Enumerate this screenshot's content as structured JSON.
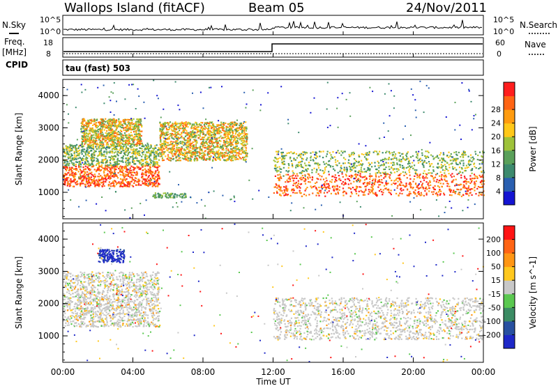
{
  "header": {
    "station": "Wallops Island (fitACF)",
    "beam": "Beam 05",
    "date": "24/Nov/2011"
  },
  "noise_panel": {
    "left_label": "N.Sky",
    "right_label": "N.Search",
    "left_ticks": [
      "10^5",
      "10^0"
    ],
    "right_ticks": [
      "10^5",
      "10^0"
    ]
  },
  "freq_panel": {
    "left_label_1": "Freq.",
    "left_label_2": "[MHz]",
    "cpid_label": "CPID",
    "right_label": "Nave",
    "left_ticks": [
      "18",
      "8"
    ],
    "right_ticks": [
      "60",
      "0"
    ],
    "cpid_value": "tau (fast) 503"
  },
  "chart_data": [
    {
      "type": "heatmap",
      "title": "",
      "xlabel": "Time UT",
      "ylabel": "Slant Range [km]",
      "xlim": [
        0,
        24
      ],
      "ylim": [
        180,
        4500
      ],
      "x_ticks": [
        "00:00",
        "04:00",
        "08:00",
        "12:00",
        "16:00",
        "20:00",
        "00:00"
      ],
      "y_ticks": [
        "1000",
        "2000",
        "3000",
        "4000"
      ],
      "colorbar": {
        "label": "Power [dB]",
        "ticks": [
          "4",
          "8",
          "12",
          "16",
          "20",
          "24",
          "28"
        ],
        "colors": [
          "#1414d2",
          "#2a5fb0",
          "#3d8a6e",
          "#5aa05a",
          "#9ec23a",
          "#ffc819",
          "#ff9b0f",
          "#ff6414",
          "#ff1e1e"
        ]
      },
      "echo_regions": [
        {
          "t_start": 0.0,
          "t_end": 5.5,
          "range_start": 1200,
          "range_end": 2500,
          "level": "high"
        },
        {
          "t_start": 1.0,
          "t_end": 4.5,
          "range_start": 2500,
          "range_end": 3300,
          "level": "medium"
        },
        {
          "t_start": 5.5,
          "t_end": 10.5,
          "range_start": 2000,
          "range_end": 3200,
          "level": "medium"
        },
        {
          "t_start": 12.0,
          "t_end": 24.0,
          "range_start": 900,
          "range_end": 2300,
          "level": "high"
        },
        {
          "t_start": 5.0,
          "t_end": 7.0,
          "range_start": 850,
          "range_end": 1000,
          "level": "low"
        }
      ]
    },
    {
      "type": "heatmap",
      "title": "",
      "xlabel": "Time UT",
      "ylabel": "Slant Range [km]",
      "xlim": [
        0,
        24
      ],
      "ylim": [
        180,
        4500
      ],
      "x_ticks": [
        "00:00",
        "04:00",
        "08:00",
        "12:00",
        "16:00",
        "20:00",
        "00:00"
      ],
      "y_ticks": [
        "1000",
        "2000",
        "3000",
        "4000"
      ],
      "colorbar": {
        "label": "Velocity [m s^-1]",
        "ticks": [
          "200",
          "100",
          "50",
          "15",
          "-15",
          "-50",
          "-100",
          "-200"
        ],
        "colors": [
          "#1e28c8",
          "#2850a0",
          "#3c8c64",
          "#5ac850",
          "#c8c8c8",
          "#ffc81e",
          "#ff9614",
          "#ff6414",
          "#ff1414"
        ]
      },
      "echo_regions": [
        {
          "t_start": 0.0,
          "t_end": 5.5,
          "range_start": 1300,
          "range_end": 3000,
          "level": "ground"
        },
        {
          "t_start": 2.0,
          "t_end": 3.5,
          "range_start": 3300,
          "range_end": 3700,
          "level": "positive"
        },
        {
          "t_start": 12.0,
          "t_end": 24.0,
          "range_start": 900,
          "range_end": 2200,
          "level": "ground"
        }
      ]
    }
  ]
}
